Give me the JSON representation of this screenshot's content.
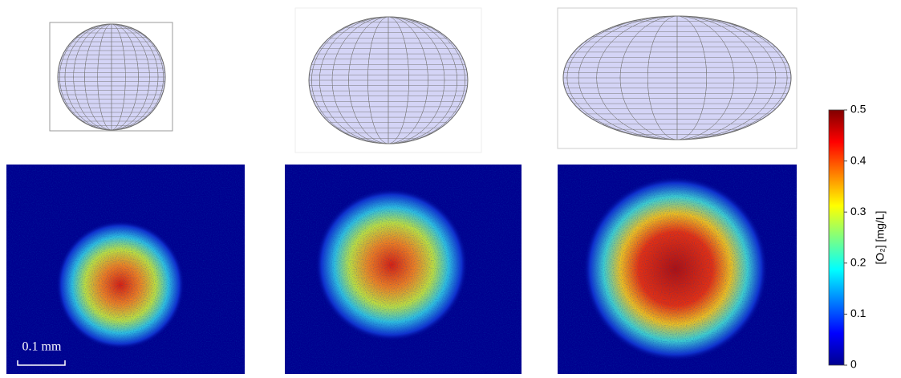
{
  "scale_bar": {
    "label": "0.1 mm"
  },
  "colorbar": {
    "label": "[O₂] [mg/L]",
    "lim": [
      0,
      0.5
    ],
    "ticks": [
      0,
      0.1,
      0.2,
      0.3,
      0.4,
      0.5
    ]
  }
}
